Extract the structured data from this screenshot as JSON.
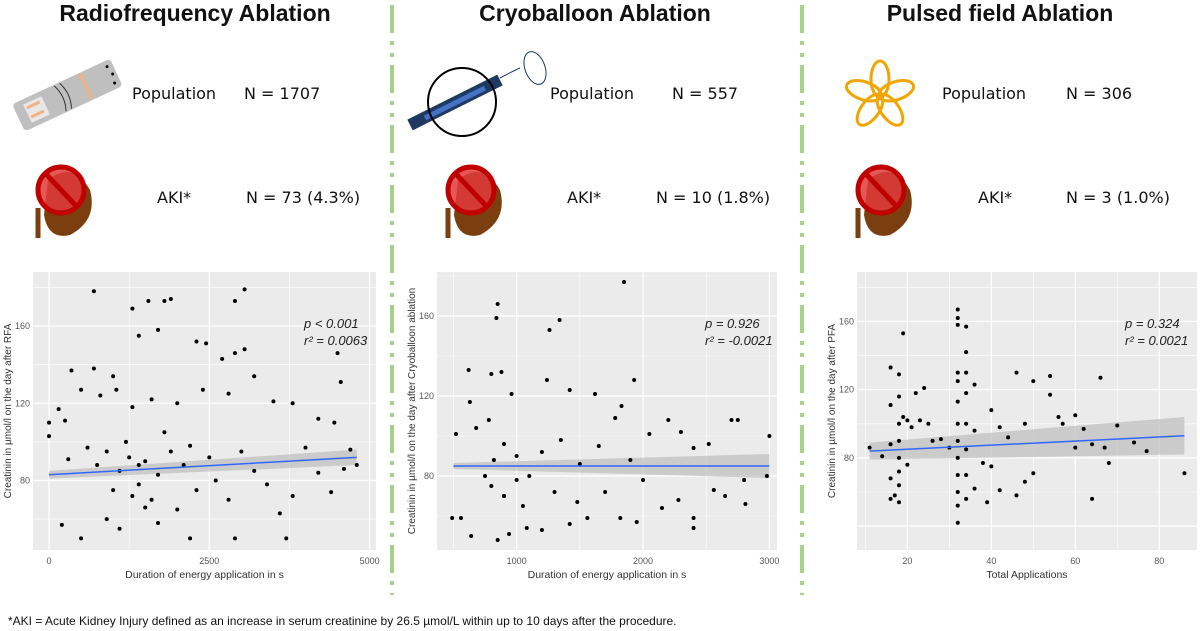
{
  "panels": [
    {
      "title": "Radiofrequency Ablation",
      "population_label": "Population",
      "population_n": "N = 1707",
      "aki_label": "AKI*",
      "aki_n": "N = 73 (4.3%)",
      "icon": "rf-catheter-icon"
    },
    {
      "title": "Cryoballoon Ablation",
      "population_label": "Population",
      "population_n": "N = 557",
      "aki_label": "AKI*",
      "aki_n": "N = 10 (1.8%)",
      "icon": "cryoballoon-icon"
    },
    {
      "title": "Pulsed field Ablation",
      "population_label": "Population",
      "population_n": "N = 306",
      "aki_label": "AKI*",
      "aki_n": "N = 3 (1.0%)",
      "icon": "pfa-flower-catheter-icon"
    }
  ],
  "colors": {
    "divider": "#a9d18e",
    "panel_bg": "#ebebeb",
    "fit_line": "#3366ff",
    "ci_band": "#bdbdbd",
    "points": "#000000",
    "kidney_red": "#c00000",
    "kidney_brown": "#7b3f0f"
  },
  "footnote": "*AKI = Acute Kidney Injury defined as an increase in serum creatinine by 26.5 µmol/L within up to 10 days after the procedure.",
  "chart_data": [
    {
      "type": "scatter",
      "xlabel": "Duration of energy application in s",
      "ylabel": "Creatinin in µmol/l on the day after RFA",
      "xlim": [
        -250,
        5100
      ],
      "ylim": [
        44,
        188
      ],
      "xticks": [
        0,
        2500,
        5000
      ],
      "yticks": [
        80,
        120,
        160
      ],
      "grid": true,
      "annotation_p": "p  < 0.001",
      "annotation_r2": "r² = 0.0063",
      "fit": {
        "x": [
          0,
          4800
        ],
        "y": [
          83,
          92
        ]
      },
      "ci_halfwidth": [
        2,
        4
      ],
      "points": [
        [
          700,
          178
        ],
        [
          3050,
          179
        ],
        [
          1300,
          169
        ],
        [
          1550,
          173
        ],
        [
          1800,
          173
        ],
        [
          1900,
          174
        ],
        [
          2900,
          173
        ],
        [
          1700,
          158
        ],
        [
          1400,
          155
        ],
        [
          2450,
          151
        ],
        [
          2300,
          152
        ],
        [
          2900,
          146
        ],
        [
          3050,
          148
        ],
        [
          4500,
          146
        ],
        [
          4550,
          131
        ],
        [
          350,
          137
        ],
        [
          700,
          138
        ],
        [
          1000,
          134
        ],
        [
          2700,
          143
        ],
        [
          3200,
          134
        ],
        [
          150,
          117
        ],
        [
          250,
          111
        ],
        [
          500,
          127
        ],
        [
          800,
          124
        ],
        [
          1050,
          127
        ],
        [
          1300,
          118
        ],
        [
          1600,
          122
        ],
        [
          2000,
          120
        ],
        [
          2400,
          127
        ],
        [
          2800,
          125
        ],
        [
          3500,
          121
        ],
        [
          3800,
          120
        ],
        [
          4200,
          112
        ],
        [
          4450,
          110
        ],
        [
          0,
          110
        ],
        [
          0,
          103
        ],
        [
          300,
          91
        ],
        [
          600,
          97
        ],
        [
          900,
          95
        ],
        [
          1100,
          85
        ],
        [
          1200,
          100
        ],
        [
          1400,
          78
        ],
        [
          1500,
          90
        ],
        [
          1600,
          70
        ],
        [
          1700,
          83
        ],
        [
          1900,
          95
        ],
        [
          2000,
          65
        ],
        [
          2100,
          88
        ],
        [
          2300,
          75
        ],
        [
          2500,
          92
        ],
        [
          2600,
          80
        ],
        [
          2800,
          70
        ],
        [
          3000,
          95
        ],
        [
          3200,
          85
        ],
        [
          3400,
          78
        ],
        [
          3600,
          63
        ],
        [
          3800,
          72
        ],
        [
          4000,
          97
        ],
        [
          4200,
          84
        ],
        [
          4400,
          74
        ],
        [
          4600,
          86
        ],
        [
          4700,
          96
        ],
        [
          4800,
          88
        ],
        [
          900,
          60
        ],
        [
          1100,
          55
        ],
        [
          1300,
          72
        ],
        [
          1700,
          58
        ],
        [
          2200,
          50
        ],
        [
          500,
          50
        ],
        [
          3700,
          50
        ],
        [
          2900,
          50
        ],
        [
          200,
          57
        ],
        [
          1000,
          75
        ],
        [
          1400,
          88
        ],
        [
          1800,
          105
        ],
        [
          2200,
          98
        ],
        [
          1250,
          92
        ],
        [
          1500,
          66
        ],
        [
          750,
          88
        ]
      ]
    },
    {
      "type": "scatter",
      "xlabel": "Duration of energy application in s",
      "ylabel": "Creatinin in µmol/l on the day after Cryoballoon ablation",
      "xlim": [
        370,
        3060
      ],
      "ylim": [
        43,
        182
      ],
      "xticks": [
        1000,
        2000,
        3000
      ],
      "yticks": [
        80,
        120,
        160
      ],
      "grid": true,
      "annotation_p": "p  = 0.926",
      "annotation_r2": "r² = -0.0021",
      "fit": {
        "x": [
          500,
          3000
        ],
        "y": [
          85,
          85
        ]
      },
      "ci_halfwidth": [
        1.5,
        6
      ],
      "points": [
        [
          1850,
          177
        ],
        [
          850,
          166
        ],
        [
          840,
          159
        ],
        [
          1340,
          158
        ],
        [
          1260,
          153
        ],
        [
          620,
          133
        ],
        [
          800,
          131
        ],
        [
          880,
          132
        ],
        [
          1240,
          128
        ],
        [
          1930,
          128
        ],
        [
          630,
          117
        ],
        [
          960,
          121
        ],
        [
          1420,
          123
        ],
        [
          1620,
          121
        ],
        [
          1830,
          115
        ],
        [
          520,
          101
        ],
        [
          680,
          104
        ],
        [
          780,
          108
        ],
        [
          900,
          96
        ],
        [
          1000,
          90
        ],
        [
          1100,
          80
        ],
        [
          1200,
          92
        ],
        [
          1350,
          98
        ],
        [
          1500,
          86
        ],
        [
          1650,
          95
        ],
        [
          1780,
          109
        ],
        [
          1900,
          88
        ],
        [
          2050,
          101
        ],
        [
          2200,
          108
        ],
        [
          2300,
          102
        ],
        [
          2400,
          94
        ],
        [
          2520,
          96
        ],
        [
          2700,
          108
        ],
        [
          2750,
          108
        ],
        [
          3000,
          100
        ],
        [
          2980,
          80
        ],
        [
          2800,
          78
        ],
        [
          2810,
          66
        ],
        [
          2650,
          70
        ],
        [
          2400,
          59
        ],
        [
          2400,
          54
        ],
        [
          2150,
          64
        ],
        [
          1950,
          57
        ],
        [
          1820,
          59
        ],
        [
          1560,
          59
        ],
        [
          1420,
          56
        ],
        [
          1200,
          53
        ],
        [
          1080,
          54
        ],
        [
          940,
          51
        ],
        [
          850,
          48
        ],
        [
          640,
          50
        ],
        [
          490,
          59
        ],
        [
          560,
          59
        ],
        [
          800,
          75
        ],
        [
          900,
          70
        ],
        [
          1000,
          78
        ],
        [
          1050,
          65
        ],
        [
          1300,
          72
        ],
        [
          1480,
          67
        ],
        [
          1700,
          72
        ],
        [
          2000,
          78
        ],
        [
          2280,
          68
        ],
        [
          2560,
          73
        ],
        [
          750,
          80
        ],
        [
          820,
          88
        ]
      ]
    },
    {
      "type": "scatter",
      "xlabel": "Total Applications",
      "ylabel": "Creatinin in µmol/l on the day after PFA",
      "xlim": [
        8,
        89
      ],
      "ylim": [
        26,
        189
      ],
      "xticks": [
        20,
        40,
        60,
        80
      ],
      "yticks": [
        80,
        120,
        160
      ],
      "grid": true,
      "annotation_p": "p  = 0.324",
      "annotation_r2": "r² = 0.0021",
      "fit": {
        "x": [
          11,
          86
        ],
        "y": [
          84,
          93
        ]
      },
      "ci_halfwidth": [
        5,
        11
      ],
      "points": [
        [
          11,
          86
        ],
        [
          14,
          81
        ],
        [
          16,
          133
        ],
        [
          16,
          111
        ],
        [
          16,
          88
        ],
        [
          16,
          68
        ],
        [
          16,
          56
        ],
        [
          17,
          58
        ],
        [
          18,
          129
        ],
        [
          18,
          116
        ],
        [
          18,
          100
        ],
        [
          18,
          90
        ],
        [
          18,
          80
        ],
        [
          18,
          72
        ],
        [
          18,
          64
        ],
        [
          18,
          54
        ],
        [
          19,
          153
        ],
        [
          19,
          104
        ],
        [
          20,
          102
        ],
        [
          20,
          76
        ],
        [
          21,
          98
        ],
        [
          22,
          118
        ],
        [
          23,
          102
        ],
        [
          24,
          121
        ],
        [
          25,
          100
        ],
        [
          26,
          90
        ],
        [
          28,
          91
        ],
        [
          30,
          86
        ],
        [
          32,
          167
        ],
        [
          32,
          162
        ],
        [
          32,
          158
        ],
        [
          32,
          130
        ],
        [
          32,
          125
        ],
        [
          32,
          113
        ],
        [
          32,
          100
        ],
        [
          32,
          90
        ],
        [
          32,
          80
        ],
        [
          32,
          70
        ],
        [
          32,
          60
        ],
        [
          32,
          52
        ],
        [
          32,
          42
        ],
        [
          34,
          157
        ],
        [
          34,
          142
        ],
        [
          34,
          130
        ],
        [
          34,
          118
        ],
        [
          34,
          100
        ],
        [
          34,
          85
        ],
        [
          34,
          70
        ],
        [
          34,
          56
        ],
        [
          36,
          123
        ],
        [
          36,
          96
        ],
        [
          36,
          62
        ],
        [
          38,
          77
        ],
        [
          39,
          54
        ],
        [
          40,
          108
        ],
        [
          40,
          75
        ],
        [
          42,
          98
        ],
        [
          42,
          61
        ],
        [
          44,
          92
        ],
        [
          46,
          130
        ],
        [
          46,
          58
        ],
        [
          48,
          100
        ],
        [
          48,
          66
        ],
        [
          50,
          125
        ],
        [
          50,
          71
        ],
        [
          54,
          128
        ],
        [
          54,
          117
        ],
        [
          56,
          104
        ],
        [
          57,
          100
        ],
        [
          60,
          105
        ],
        [
          60,
          86
        ],
        [
          62,
          97
        ],
        [
          64,
          88
        ],
        [
          64,
          56
        ],
        [
          66,
          127
        ],
        [
          67,
          86
        ],
        [
          68,
          77
        ],
        [
          70,
          99
        ],
        [
          74,
          89
        ],
        [
          77,
          84
        ],
        [
          86,
          71
        ]
      ]
    }
  ]
}
